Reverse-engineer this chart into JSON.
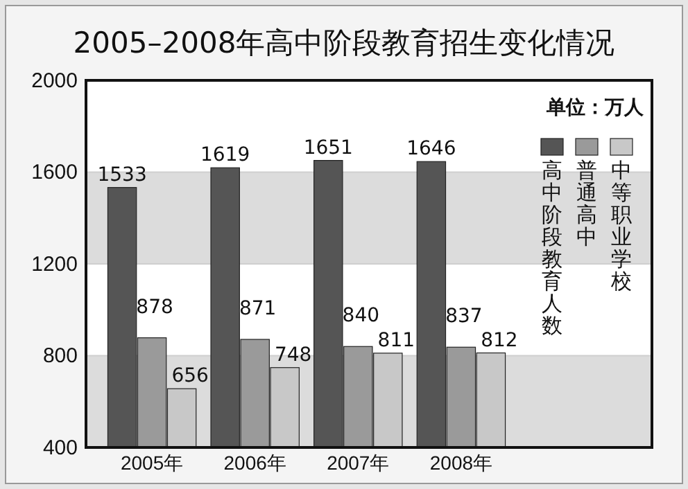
{
  "chart_data": {
    "type": "bar",
    "title": "2005–2008年高中阶段教育招生变化情况",
    "categories": [
      "2005年",
      "2006年",
      "2007年",
      "2008年"
    ],
    "series": [
      {
        "name": "高中阶段教育人数",
        "color": "#555555",
        "values": [
          1533,
          1619,
          1651,
          1646
        ]
      },
      {
        "name": "普通高中",
        "color": "#9a9a9a",
        "values": [
          878,
          871,
          840,
          837
        ]
      },
      {
        "name": "中等职业学校",
        "color": "#c8c8c8",
        "values": [
          656,
          748,
          811,
          812
        ]
      }
    ],
    "ylim": [
      400,
      2000
    ],
    "yticks": [
      400,
      800,
      1200,
      1600,
      2000
    ],
    "grid": "y",
    "legend": "top right",
    "data_labels": true,
    "annotations": [
      "单位：万人"
    ]
  }
}
